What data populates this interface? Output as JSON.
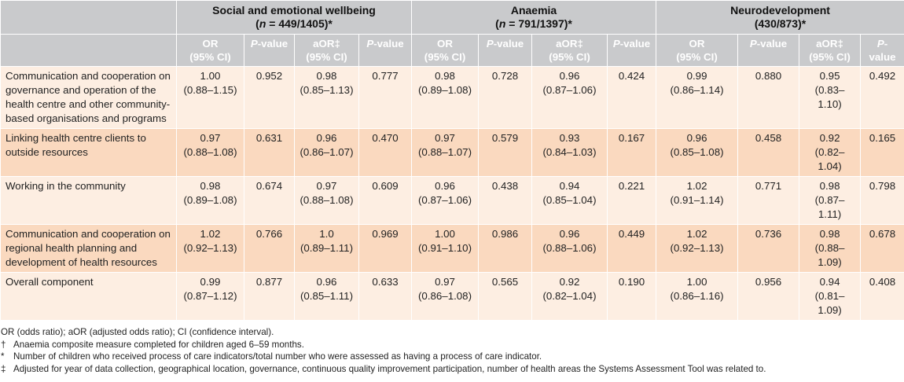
{
  "groups": [
    {
      "title": "Social and emotional wellbeing",
      "subtitle_n": "n",
      "subtitle_rest": " = 449/1405)*"
    },
    {
      "title": "Anaemia",
      "subtitle_n": "n",
      "subtitle_rest": " = 791/1397)*"
    },
    {
      "title": "Neurodevelopment",
      "subtitle_n": "",
      "subtitle_rest": "(430/873)*"
    }
  ],
  "subheaders": {
    "or": "OR",
    "or_ci": "(95% CI)",
    "p": "P",
    "p_rest": "-value",
    "aor": "aOR‡",
    "aor_ci": "(95% CI)"
  },
  "rows": [
    {
      "label": "Communication and cooperation on governance and operation of the health centre and other community-based organisations and programs",
      "cells": [
        [
          "1.00",
          "(0.88–1.15)"
        ],
        "0.952",
        [
          "0.98",
          "(0.85–1.13)"
        ],
        "0.777",
        [
          "0.98",
          "(0.89–1.08)"
        ],
        "0.728",
        [
          "0.96",
          "(0.87–1.06)"
        ],
        "0.424",
        [
          "0.99",
          "(0.86–1.14)"
        ],
        "0.880",
        [
          "0.95",
          "(0.83–1.10)"
        ],
        "0.492"
      ]
    },
    {
      "label": "Linking health centre clients to outside resources",
      "cells": [
        [
          "0.97",
          "(0.88–1.08)"
        ],
        "0.631",
        [
          "0.96",
          "(0.86–1.07)"
        ],
        "0.470",
        [
          "0.97",
          "(0.88–1.07)"
        ],
        "0.579",
        [
          "0.93",
          "(0.84–1.03)"
        ],
        "0.167",
        [
          "0.96",
          "(0.85–1.08)"
        ],
        "0.458",
        [
          "0.92",
          "(0.82–1.04)"
        ],
        "0.165"
      ]
    },
    {
      "label": "Working in the community",
      "cells": [
        [
          "0.98",
          "(0.89–1.08)"
        ],
        "0.674",
        [
          "0.97",
          "(0.88–1.08)"
        ],
        "0.609",
        [
          "0.96",
          "(0.87–1.06)"
        ],
        "0.438",
        [
          "0.94",
          "(0.85–1.04)"
        ],
        "0.221",
        [
          "1.02",
          "(0.91–1.14)"
        ],
        "0.771",
        [
          "0.98",
          "(0.87–1.11)"
        ],
        "0.798"
      ]
    },
    {
      "label": "Communication and cooperation on regional health planning and development of health resources",
      "cells": [
        [
          "1.02",
          "(0.92–1.13)"
        ],
        "0.766",
        [
          "1.0",
          "(0.89–1.11)"
        ],
        "0.969",
        [
          "1.00",
          "(0.91–1.10)"
        ],
        "0.986",
        [
          "0.96",
          "(0.88–1.06)"
        ],
        "0.449",
        [
          "1.02",
          "(0.92–1.13)"
        ],
        "0.736",
        [
          "0.98",
          "(0.88–1.09)"
        ],
        "0.678"
      ]
    },
    {
      "label": "Overall component",
      "cells": [
        [
          "0.99",
          "(0.87–1.12)"
        ],
        "0.877",
        [
          "0.96",
          "(0.85–1.11)"
        ],
        "0.633",
        [
          "0.97",
          "(0.86–1.08)"
        ],
        "0.565",
        [
          "0.92",
          "(0.82–1.04)"
        ],
        "0.190",
        [
          "1.00",
          "(0.86–1.16)"
        ],
        "0.956",
        [
          "0.94",
          "(0.81–1.09)"
        ],
        "0.408"
      ]
    }
  ],
  "notes": {
    "abbrev": "OR (odds ratio); aOR (adjusted odds ratio); CI (confidence interval).",
    "items": [
      {
        "sym": "†",
        "text": "Anaemia composite measure completed for children aged 6–59 months."
      },
      {
        "sym": "*",
        "text": "Number of children who received process of care indicators/total number who were assessed as having a process of care indicator."
      },
      {
        "sym": "‡",
        "text": "Adjusted for year of data collection, geographical location, governance, continuous quality improvement participation, number of health areas the Systems Assessment Tool was related to."
      }
    ]
  }
}
